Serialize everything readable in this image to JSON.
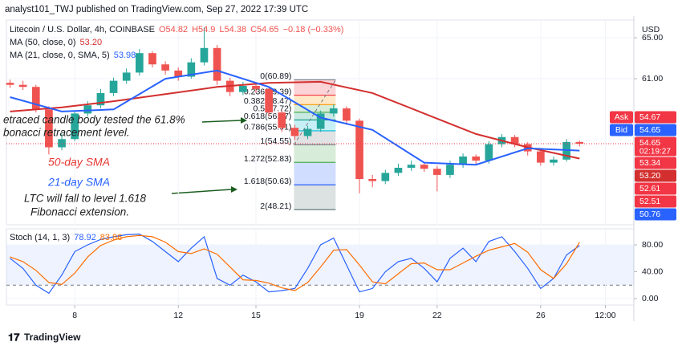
{
  "header": {
    "publisher": "analyst101_TWJ published on TradingView.com, Sep 27, 2022 17:39 UTC"
  },
  "footer": {
    "logo": "TradingView"
  },
  "chart_data": [
    {
      "type": "candlestick",
      "title": "Litecoin / U.S. Dollar, 4h, COINBASE",
      "ohlc_text": [
        "O54.82",
        "H54.9",
        "L54.38",
        "C54.65",
        "−0.18 (−0.33%)"
      ],
      "axis_label": "USD",
      "up_color": "#26a69a",
      "down_color": "#ef5350",
      "x": [
        5.5,
        6,
        6.5,
        7,
        7.5,
        8,
        8.5,
        9,
        9.5,
        10,
        10.5,
        11,
        11.5,
        12,
        12.5,
        13,
        13.5,
        14,
        14.5,
        15,
        15.5,
        16,
        16.5,
        17,
        17.5,
        18,
        18.5,
        19,
        19.5,
        20,
        20.5,
        21,
        21.5,
        22,
        22.5,
        23,
        23.5,
        24,
        24.5,
        25,
        25.5,
        26,
        26.5,
        27,
        27.5
      ],
      "open": [
        60.6,
        60.4,
        60.2,
        58.0,
        54.3,
        55.1,
        57.6,
        58.4,
        59.6,
        60.8,
        61.6,
        63.5,
        62.4,
        61.8,
        61.2,
        62.6,
        64.0,
        60.8,
        59.7,
        60.3,
        60.0,
        57.7,
        56.2,
        55.4,
        56.1,
        57.6,
        58.1,
        56.9,
        51.2,
        51.0,
        51.8,
        52.3,
        52.6,
        52.2,
        51.6,
        52.6,
        53.4,
        53.0,
        54.6,
        55.3,
        54.6,
        53.9,
        52.8,
        53.1,
        54.82
      ],
      "high": [
        60.9,
        60.8,
        60.4,
        58.3,
        55.6,
        57.9,
        58.8,
        60.0,
        61.1,
        62.0,
        63.9,
        63.7,
        62.7,
        62.1,
        63.0,
        66.0,
        64.3,
        61.1,
        60.7,
        60.6,
        60.2,
        57.9,
        56.5,
        56.4,
        57.9,
        58.5,
        58.3,
        57.1,
        51.6,
        52.1,
        52.7,
        53.0,
        52.8,
        52.5,
        53.0,
        53.7,
        53.6,
        54.9,
        55.6,
        55.5,
        54.8,
        54.1,
        53.4,
        55.1,
        54.95
      ],
      "low": [
        60.1,
        59.9,
        57.7,
        53.6,
        54.0,
        54.9,
        57.3,
        58.1,
        59.3,
        60.5,
        61.3,
        62.1,
        61.4,
        60.8,
        61.0,
        62.3,
        60.4,
        59.3,
        59.4,
        59.6,
        57.3,
        55.8,
        55.0,
        55.1,
        55.8,
        57.3,
        56.5,
        49.8,
        50.4,
        50.7,
        51.5,
        52.0,
        51.9,
        50.0,
        51.3,
        52.3,
        52.6,
        52.7,
        54.3,
        54.3,
        53.5,
        52.5,
        52.5,
        52.9,
        54.38
      ],
      "close": [
        60.4,
        60.2,
        58.0,
        54.3,
        55.1,
        57.6,
        58.4,
        59.6,
        60.8,
        61.6,
        63.5,
        62.4,
        61.8,
        61.2,
        62.6,
        64.0,
        60.8,
        59.7,
        60.3,
        60.0,
        57.7,
        56.2,
        55.4,
        56.1,
        57.6,
        58.1,
        56.9,
        51.2,
        51.0,
        51.8,
        52.3,
        52.6,
        52.2,
        51.6,
        52.6,
        53.4,
        53.0,
        54.6,
        55.3,
        54.6,
        53.9,
        52.8,
        53.1,
        54.82,
        54.65
      ],
      "series": [
        {
          "name": "MA (50, close, 0)",
          "color": "#d32f2f",
          "x": [
            5.5,
            7.5,
            9.5,
            11.5,
            13.5,
            15.5,
            17.5,
            19.5,
            21.5,
            23.5,
            25.5,
            27.5
          ],
          "values": [
            57.8,
            58.2,
            58.8,
            59.5,
            60.2,
            60.6,
            60.7,
            59.6,
            57.6,
            55.6,
            54.3,
            53.2
          ],
          "value_label": "53.20"
        },
        {
          "name": "MA (21, close, 0, SMA, 5)",
          "color": "#2962ff",
          "x": [
            5.5,
            7.5,
            9.5,
            11.5,
            13.5,
            15.5,
            17.5,
            19.5,
            21.5,
            23.5,
            25.5,
            27.5
          ],
          "values": [
            59.2,
            57.8,
            58.0,
            61.0,
            61.8,
            60.2,
            57.2,
            56.0,
            52.8,
            52.6,
            54.2,
            53.98
          ],
          "value_label": "53.98"
        }
      ],
      "xlim": [
        5.36,
        29.6
      ],
      "ylim": [
        46.73,
        66.73
      ],
      "yticks": [
        {
          "value": 65,
          "label": "65.00"
        },
        {
          "value": 61,
          "label": "61.00"
        }
      ],
      "grid": true,
      "last_price": 54.65,
      "last_color": "#f23645",
      "fib": {
        "x": [
          16.47,
          18.08
        ],
        "levels": [
          {
            "price": 60.89,
            "label": "0(60.89)",
            "color": "#787b86"
          },
          {
            "price": 59.39,
            "label": "0.236(59.39)",
            "color": "#f23645"
          },
          {
            "price": 58.47,
            "label": "0.382(58.47)",
            "color": "#ff9800"
          },
          {
            "price": 57.72,
            "label": "0.5(57.72)",
            "color": "#4caf50"
          },
          {
            "price": 56.97,
            "label": "0.618(56.97)",
            "color": "#089981"
          },
          {
            "price": 55.91,
            "label": "0.786(55.91)",
            "color": "#00bcd4"
          },
          {
            "price": 54.55,
            "label": "1(54.55)",
            "color": "#787b86"
          },
          {
            "price": 52.83,
            "label": "1.272(52.83)",
            "color": "#4caf50"
          },
          {
            "price": 50.63,
            "label": "1.618(50.63)",
            "color": "#2962ff"
          },
          {
            "price": 48.21,
            "label": "2(48.21)",
            "color": "#607d7b"
          }
        ]
      },
      "annotations": [
        {
          "text": "etraced candle body tested the 61.8%",
          "color": "#222222"
        },
        {
          "text": "bonacci retracement level.",
          "color": "#222222"
        },
        {
          "text": "50-day SMA",
          "color": "#e53935"
        },
        {
          "text": "21-day SMA",
          "color": "#2962ff"
        },
        {
          "text": "LTC will fall to level 1.618",
          "color": "#222222"
        },
        {
          "text": "Fibonacci extension.",
          "color": "#222222"
        }
      ],
      "badges": [
        {
          "name": "Ask",
          "label": "54.67",
          "color": "#f23645"
        },
        {
          "name": "Bid",
          "label": "54.65",
          "color": "#2962ff"
        },
        {
          "label": "54.65",
          "sub": "02:19:27",
          "color": "#f23645"
        },
        {
          "label": "53.34",
          "color": "#f23645"
        },
        {
          "label": "53.20",
          "color": "#d32f2f"
        },
        {
          "label": "52.61",
          "color": "#f23645"
        },
        {
          "label": "52.51",
          "color": "#f23645"
        },
        {
          "label": "50.76",
          "color": "#2962ff"
        }
      ]
    },
    {
      "type": "line",
      "title": "Stoch (14, 1, 3)",
      "x": [
        5.5,
        6,
        6.5,
        7,
        7.5,
        8,
        8.5,
        9,
        9.5,
        10,
        10.5,
        11,
        11.5,
        12,
        12.5,
        13,
        13.5,
        14,
        14.5,
        15,
        15.5,
        16,
        16.5,
        17,
        17.5,
        18,
        18.5,
        19,
        19.5,
        20,
        20.5,
        21,
        21.5,
        22,
        22.5,
        23,
        23.5,
        24,
        24.5,
        25,
        25.5,
        26,
        26.5,
        27,
        27.5
      ],
      "series": [
        {
          "color": "#2962ff",
          "values": [
            60,
            45,
            20,
            8,
            35,
            70,
            80,
            88,
            92,
            95,
            96,
            85,
            70,
            55,
            75,
            92,
            30,
            20,
            35,
            25,
            10,
            12,
            15,
            45,
            80,
            90,
            50,
            10,
            15,
            40,
            55,
            60,
            45,
            25,
            60,
            75,
            55,
            85,
            92,
            70,
            45,
            15,
            30,
            65,
            78.92
          ]
        },
        {
          "color": "#ff6d00",
          "values": [
            62,
            55,
            42,
            24,
            21,
            38,
            62,
            79,
            87,
            92,
            94,
            92,
            84,
            70,
            67,
            74,
            66,
            47,
            28,
            27,
            23,
            16,
            12,
            24,
            47,
            72,
            73,
            50,
            25,
            22,
            37,
            52,
            53,
            43,
            43,
            53,
            63,
            72,
            77,
            82,
            69,
            43,
            30,
            52,
            83.86
          ]
        }
      ],
      "band": [
        20,
        80
      ],
      "band_color": "#2962ff",
      "xlim": [
        5.36,
        29.6
      ],
      "xticks": [
        8,
        12,
        15,
        19,
        22,
        26,
        {
          "value": 28.5,
          "label": "12:00"
        }
      ],
      "ylim": [
        -9.55,
        103.88
      ],
      "yticks": [
        {
          "value": 80,
          "label": "80.00"
        },
        {
          "value": 40,
          "label": "40.00"
        },
        {
          "value": 0,
          "label": "0.00"
        }
      ],
      "grid": true
    }
  ]
}
